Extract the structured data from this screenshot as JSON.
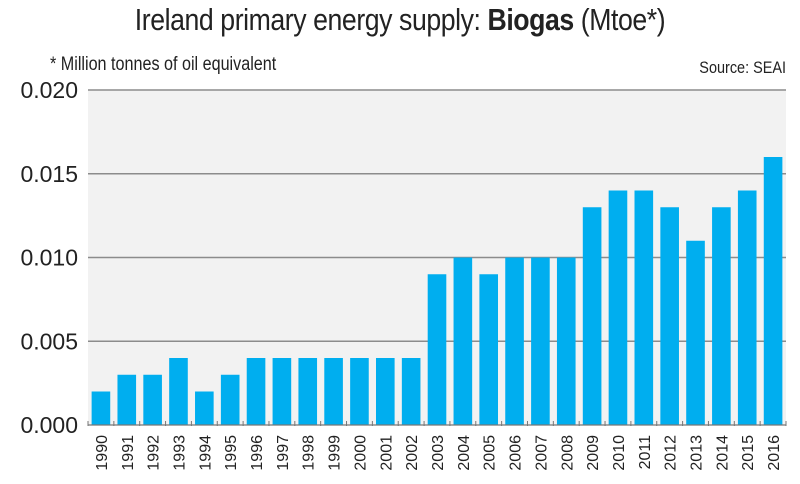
{
  "header": {
    "title_prefix": "Ireland primary energy supply: ",
    "title_bold": "Biogas",
    "title_suffix": " (Mtoe*)",
    "subtitle": "* Million tonnes of oil equivalent",
    "source": "Source: SEAI"
  },
  "chart_data": {
    "type": "bar",
    "title": "Ireland primary energy supply: Biogas (Mtoe*)",
    "subtitle": "* Million tonnes of oil equivalent",
    "source": "Source: SEAI",
    "xlabel": "",
    "ylabel": "",
    "ylim": [
      0,
      0.02
    ],
    "yticks": [
      "0.000",
      "0.005",
      "0.010",
      "0.015",
      "0.020"
    ],
    "ytick_values": [
      0,
      0.005,
      0.01,
      0.015,
      0.02
    ],
    "grid": true,
    "legend": "none",
    "colors": {
      "bar": "#00aeef",
      "plot_bg": "#f2f2f2",
      "grid": "#8c8c8c"
    },
    "categories": [
      "1990",
      "1991",
      "1992",
      "1993",
      "1994",
      "1995",
      "1996",
      "1997",
      "1998",
      "1999",
      "2000",
      "2001",
      "2002",
      "2003",
      "2004",
      "2005",
      "2006",
      "2007",
      "2008",
      "2009",
      "2010",
      "2011",
      "2012",
      "2013",
      "2014",
      "2015",
      "2016"
    ],
    "values": [
      0.002,
      0.003,
      0.003,
      0.004,
      0.002,
      0.003,
      0.004,
      0.004,
      0.004,
      0.004,
      0.004,
      0.004,
      0.004,
      0.009,
      0.01,
      0.009,
      0.01,
      0.01,
      0.01,
      0.013,
      0.014,
      0.014,
      0.013,
      0.011,
      0.013,
      0.014,
      0.016
    ]
  }
}
